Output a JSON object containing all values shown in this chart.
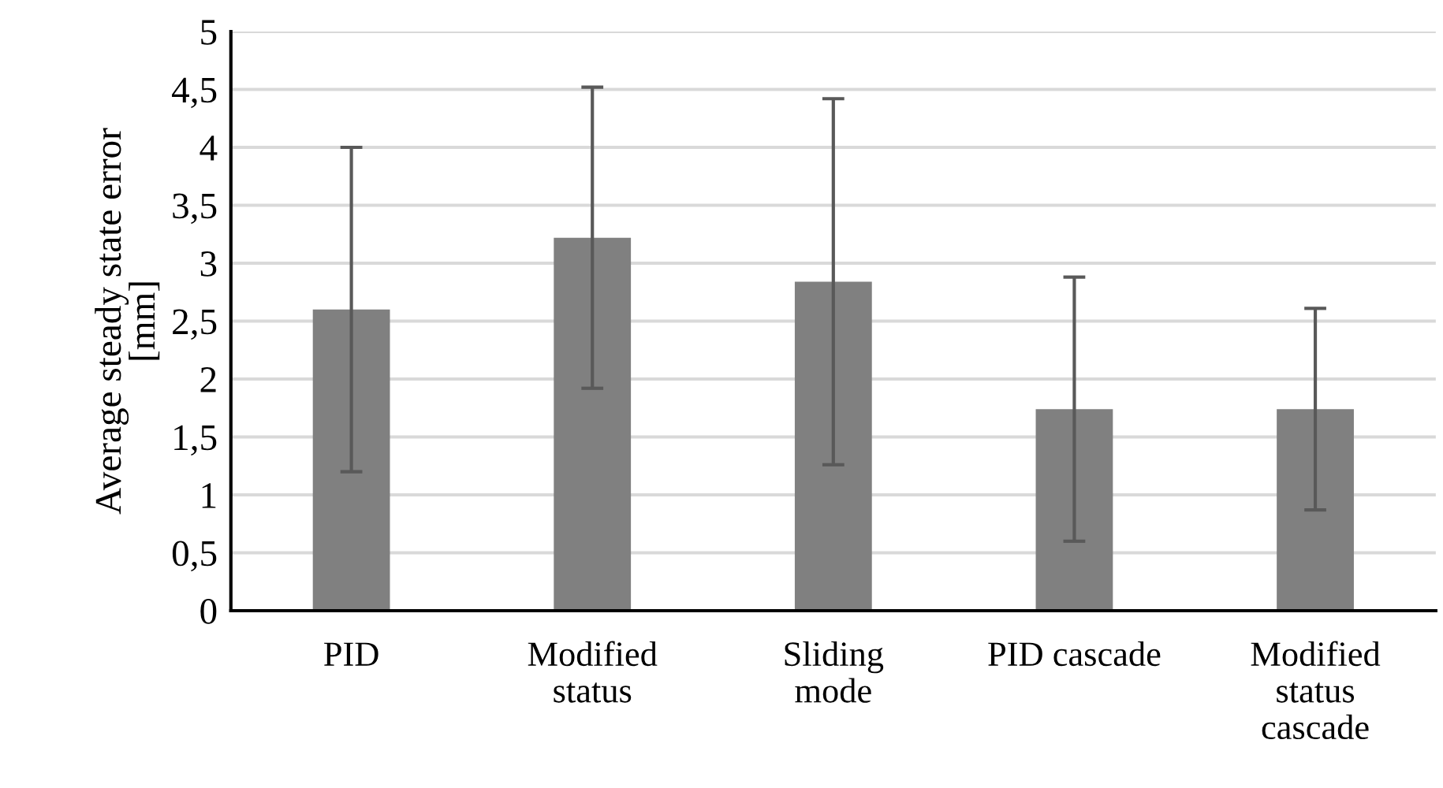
{
  "chart_data": {
    "type": "bar",
    "ylabel": "Average steady state error\n[mm]",
    "categories": [
      "PID",
      "Modified\nstatus",
      "Sliding\nmode",
      "PID cascade",
      "Modified\nstatus\ncascade"
    ],
    "values": [
      2.6,
      3.22,
      2.84,
      1.74,
      1.74
    ],
    "errors": [
      1.4,
      1.3,
      1.58,
      1.14,
      0.87
    ],
    "color": "#808080",
    "ylim": [
      0,
      5
    ],
    "yticks": [
      {
        "value": 0,
        "label": "0"
      },
      {
        "value": 0.5,
        "label": "0,5"
      },
      {
        "value": 1,
        "label": "1"
      },
      {
        "value": 1.5,
        "label": "1,5"
      },
      {
        "value": 2,
        "label": "2"
      },
      {
        "value": 2.5,
        "label": "2,5"
      },
      {
        "value": 3,
        "label": "3"
      },
      {
        "value": 3.5,
        "label": "3,5"
      },
      {
        "value": 4,
        "label": "4"
      },
      {
        "value": 4.5,
        "label": "4,5"
      },
      {
        "value": 5,
        "label": "5"
      }
    ],
    "grid": "y"
  }
}
